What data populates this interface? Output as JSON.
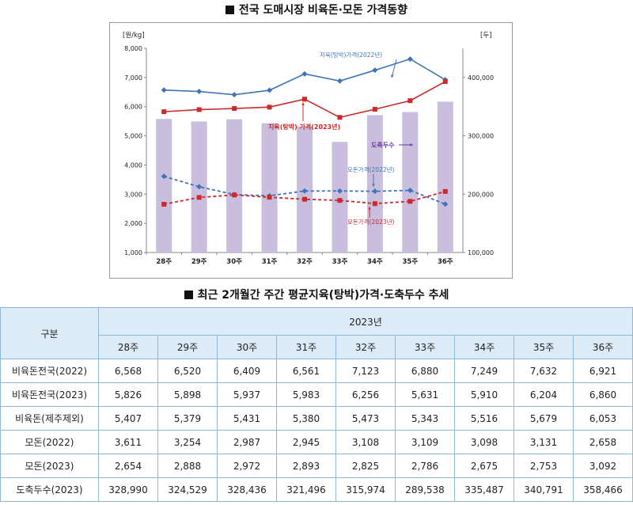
{
  "titles": {
    "chart": "전국 도매시장 비육돈·모돈 가격동향",
    "table": "최근 2개월간 주간 평균지육(탕박)가격·도축두수 추세"
  },
  "chart_data": {
    "type": "bar+line",
    "categories": [
      "28주",
      "29주",
      "30주",
      "31주",
      "32주",
      "33주",
      "34주",
      "35주",
      "36주"
    ],
    "left_axis": {
      "unit_label": "[원/kg]",
      "min": 1000,
      "max": 8000,
      "ticks": [
        "1,000",
        "2,000",
        "3,000",
        "4,000",
        "5,000",
        "6,000",
        "7,000",
        "8,000"
      ]
    },
    "right_axis": {
      "unit_label": "[두]",
      "min": 100000,
      "max": 450000,
      "ticks": [
        "100,000",
        "200,000",
        "300,000",
        "400,000"
      ]
    },
    "bars": {
      "axis": "right",
      "color": "#c9bedd",
      "values": [
        328990,
        324529,
        328436,
        321496,
        315974,
        289538,
        335487,
        340791,
        358466
      ]
    },
    "lines": [
      {
        "name": "지육(탕박)가격(2022년)",
        "axis": "left",
        "color": "#3f74b8",
        "dashed": false,
        "marker": "diamond",
        "values": [
          6568,
          6520,
          6409,
          6561,
          7123,
          6880,
          7249,
          7632,
          6921
        ]
      },
      {
        "name": "지육(탕박) 가격(2023년)",
        "axis": "left",
        "color": "#cc2a2a",
        "dashed": false,
        "marker": "square",
        "values": [
          5826,
          5898,
          5937,
          5983,
          6256,
          5631,
          5910,
          6204,
          6860
        ]
      },
      {
        "name": "모돈가격(2022년)",
        "axis": "left",
        "color": "#3f74b8",
        "dashed": true,
        "marker": "diamond",
        "values": [
          3611,
          3254,
          2987,
          2945,
          3108,
          3109,
          3098,
          3131,
          2658
        ]
      },
      {
        "name": "모돈가격(2023년)",
        "axis": "left",
        "color": "#cc2a2a",
        "dashed": true,
        "marker": "square",
        "values": [
          2654,
          2888,
          2972,
          2893,
          2825,
          2786,
          2675,
          2753,
          3092
        ]
      }
    ],
    "annotations": [
      {
        "text": "지육(탕박)가격(2022년)",
        "color": "#3f74b8"
      },
      {
        "text": "지육(탕박) 가격(2023년)",
        "color": "#cc2a2a"
      },
      {
        "text": "도축두수",
        "color": "#6a3aa0"
      },
      {
        "text": "모돈가격(2022년)",
        "color": "#3f74b8"
      },
      {
        "text": "모돈가격(2023년)",
        "color": "#cc2a2a"
      }
    ],
    "grid": false
  },
  "table": {
    "corner": "구분",
    "year": "2023년",
    "weeks": [
      "28주",
      "29주",
      "30주",
      "31주",
      "32주",
      "33주",
      "34주",
      "35주",
      "36주"
    ],
    "rows": [
      {
        "label": "비육돈전국(2022)",
        "values": [
          "6,568",
          "6,520",
          "6,409",
          "6,561",
          "7,123",
          "6,880",
          "7,249",
          "7,632",
          "6,921"
        ]
      },
      {
        "label": "비육돈전국(2023)",
        "values": [
          "5,826",
          "5,898",
          "5,937",
          "5,983",
          "6,256",
          "5,631",
          "5,910",
          "6,204",
          "6,860"
        ]
      },
      {
        "label": "비육돈(제주제외)",
        "values": [
          "5,407",
          "5,379",
          "5,431",
          "5,380",
          "5,473",
          "5,343",
          "5,516",
          "5,679",
          "6,053"
        ]
      },
      {
        "label": "모돈(2022)",
        "values": [
          "3,611",
          "3,254",
          "2,987",
          "2,945",
          "3,108",
          "3,109",
          "3,098",
          "3,131",
          "2,658"
        ]
      },
      {
        "label": "모돈(2023)",
        "values": [
          "2,654",
          "2,888",
          "2,972",
          "2,893",
          "2,825",
          "2,786",
          "2,675",
          "2,753",
          "3,092"
        ]
      },
      {
        "label": "도축두수(2023)",
        "values": [
          "328,990",
          "324,529",
          "328,436",
          "321,496",
          "315,974",
          "289,538",
          "335,487",
          "340,791",
          "358,466"
        ]
      }
    ]
  }
}
